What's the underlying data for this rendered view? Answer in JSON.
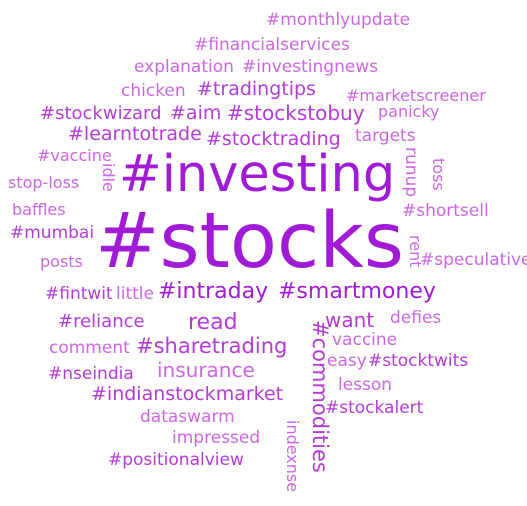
{
  "wordcloud": {
    "colors": {
      "dark": "#a11bd6",
      "mid": "#b63ad9",
      "light": "#cd66e3"
    },
    "words": [
      "#monthlyupdate",
      "#financialservices",
      "explanation",
      "#investingnews",
      "chicken",
      "#tradingtips",
      "#marketscreener",
      "#stockwizard",
      "#aim",
      "#stockstobuy",
      "panicky",
      "#learntotrade",
      "#stocktrading",
      "targets",
      "#vaccine",
      "#investing",
      "idle",
      "runup",
      "toss",
      "stop-loss",
      "baffles",
      "#shortsell",
      "#stocks",
      "#mumbai",
      "rent",
      "posts",
      "#speculative",
      "#fintwit",
      "little",
      "#intraday",
      "#smartmoney",
      "read",
      "want",
      "defies",
      "#reliance",
      "vaccine",
      "comment",
      "#sharetrading",
      "#commodities",
      "easy",
      "#stocktwits",
      "insurance",
      "#nseindia",
      "lesson",
      "#indianstockmarket",
      "#stockalert",
      "dataswarm",
      "impressed",
      "indexnse",
      "#positionalview"
    ]
  }
}
